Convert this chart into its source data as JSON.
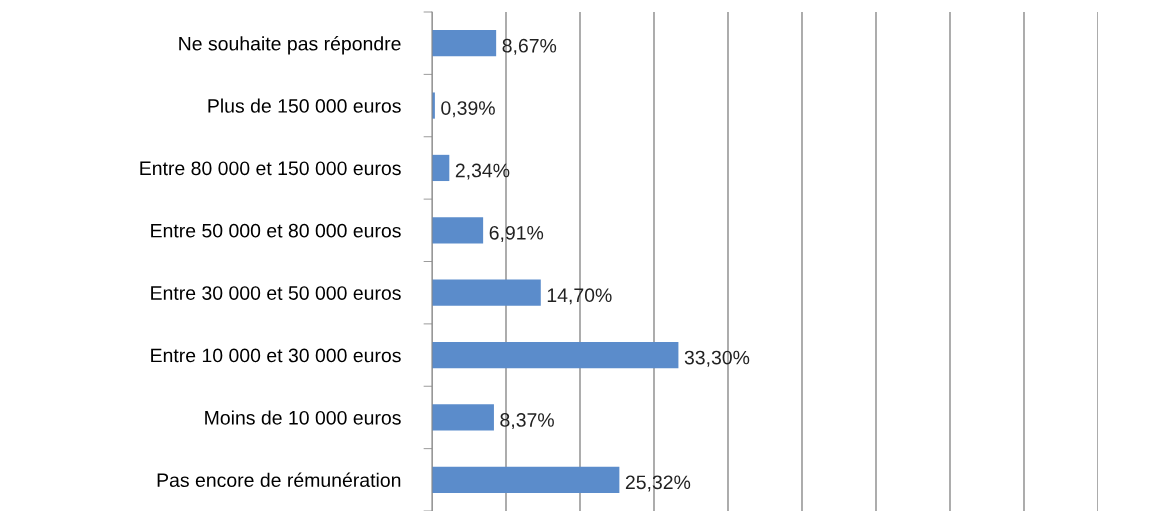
{
  "chart_data": {
    "type": "bar",
    "orientation": "horizontal",
    "categories": [
      "Ne souhaite pas répondre",
      "Plus de 150 000 euros",
      "Entre 80 000 et 150 000 euros",
      "Entre 50 000 et 80 000 euros",
      "Entre 30 000 et 50 000 euros",
      "Entre 10 000 et 30 000 euros",
      "Moins de 10 000 euros",
      "Pas encore de rémunération"
    ],
    "values": [
      8.67,
      0.39,
      2.34,
      6.91,
      14.7,
      33.3,
      8.37,
      25.32
    ],
    "value_labels": [
      "8,67%",
      "0,39%",
      "2,34%",
      "6,91%",
      "14,70%",
      "33,30%",
      "8,37%",
      "25,32%"
    ],
    "color": "#5b8ccb",
    "xlim": [
      0,
      90
    ],
    "xticks": [
      {
        "value": 0,
        "label": null
      },
      {
        "value": 10,
        "label": null
      },
      {
        "value": 20,
        "label": null
      },
      {
        "value": 30,
        "label": null
      },
      {
        "value": 40,
        "label": null
      },
      {
        "value": 50,
        "label": null
      },
      {
        "value": 60,
        "label": null
      },
      {
        "value": 70,
        "label": null
      },
      {
        "value": 80,
        "label": null
      },
      {
        "value": 90,
        "label": null
      }
    ],
    "grid": "x",
    "tick_labels": "y"
  }
}
